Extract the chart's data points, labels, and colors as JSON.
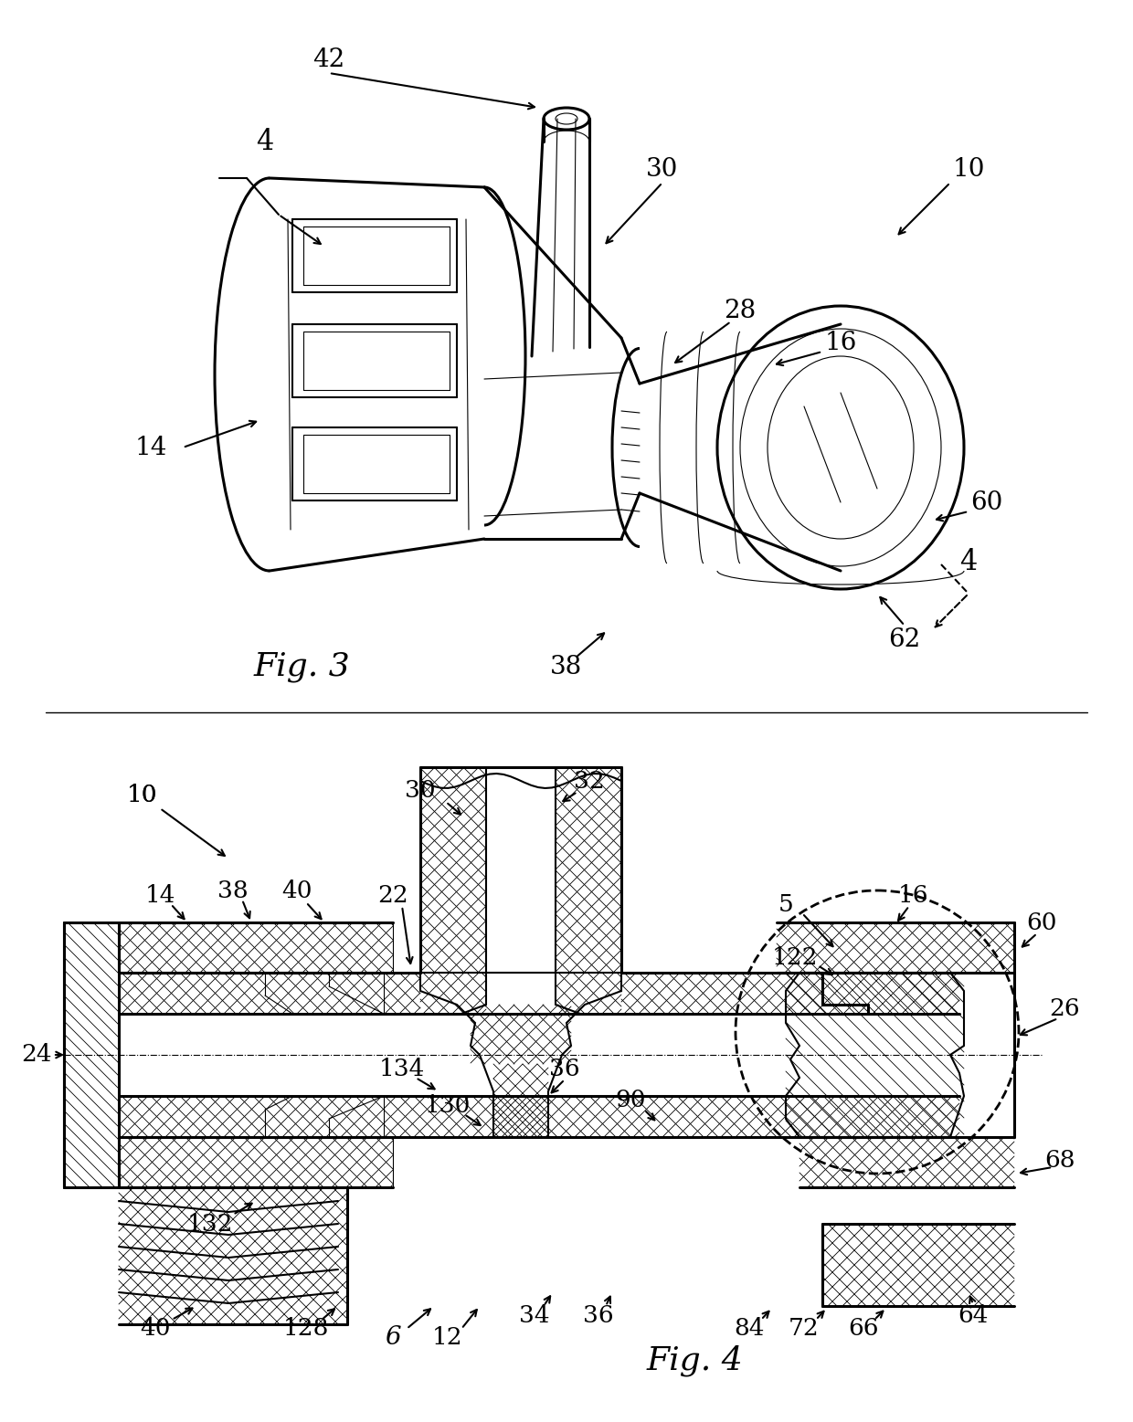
{
  "bg_color": "#ffffff",
  "line_color": "#000000",
  "fig_width": 12.4,
  "fig_height": 15.57,
  "dpi": 100
}
